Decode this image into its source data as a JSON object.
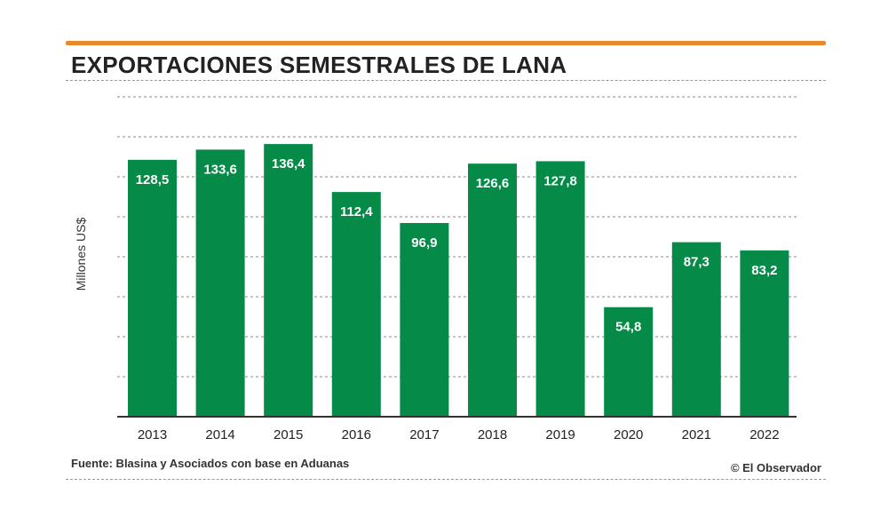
{
  "colors": {
    "accent": "#e8892e",
    "bar": "#068a47",
    "bar_label": "#ffffff",
    "text": "#222222",
    "grid": "#888888"
  },
  "title": "EXPORTACIONES SEMESTRALES DE LANA",
  "source": "Fuente: Blasina y Asociados con base en Aduanas",
  "credit": "© El Observador",
  "chart_data": {
    "type": "bar",
    "title": "EXPORTACIONES SEMESTRALES DE LANA",
    "xlabel": "",
    "ylabel": "Millones US$",
    "categories": [
      "2013",
      "2014",
      "2015",
      "2016",
      "2017",
      "2018",
      "2019",
      "2020",
      "2021",
      "2022"
    ],
    "values": [
      128.5,
      133.6,
      136.4,
      112.4,
      96.9,
      126.6,
      127.8,
      54.8,
      87.3,
      83.2
    ],
    "value_labels": [
      "128,5",
      "133,6",
      "136,4",
      "112,4",
      "96,9",
      "126,6",
      "127,8",
      "54,8",
      "87,3",
      "83,2"
    ],
    "ylim": [
      0,
      160
    ],
    "y_gridlines": [
      20,
      40,
      60,
      80,
      100,
      120,
      140,
      160
    ],
    "grid": true,
    "legend": "none"
  }
}
